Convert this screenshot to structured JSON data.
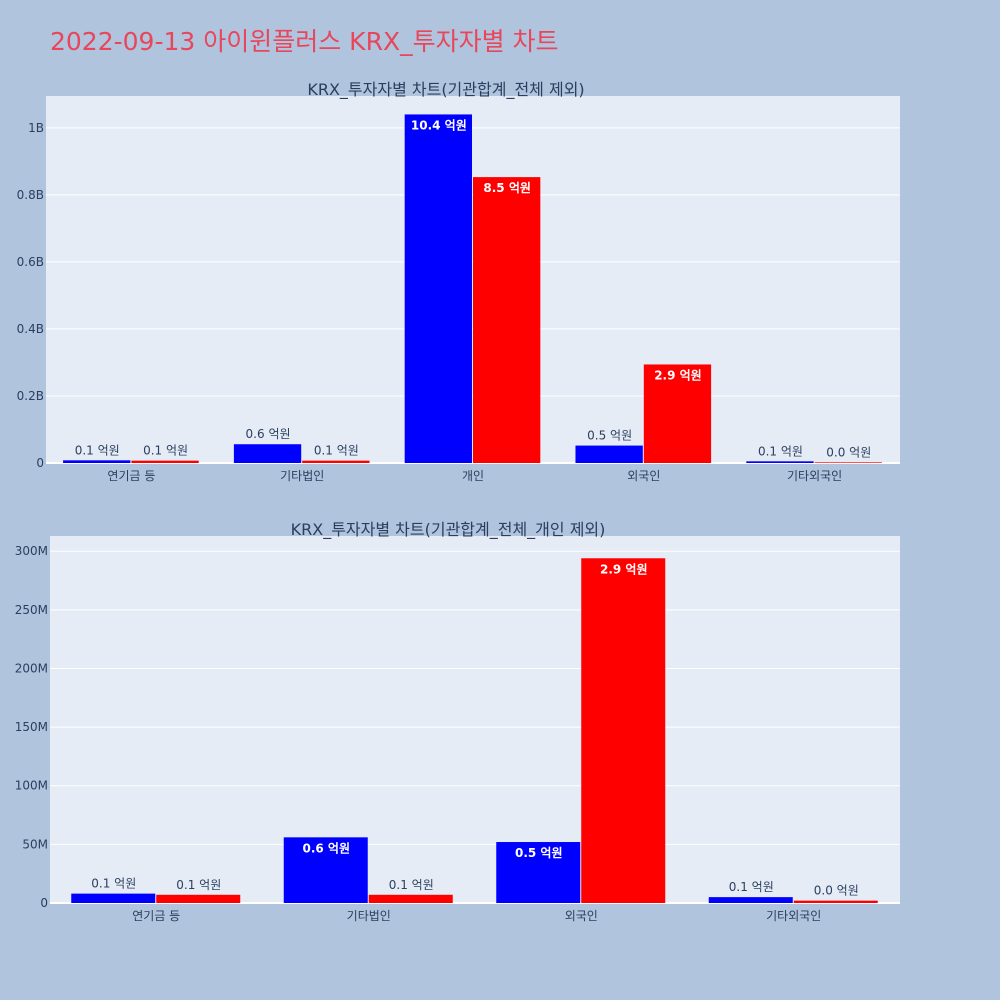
{
  "title": "2022-09-13 아이윈플러스 KRX_투자자별 차트",
  "colors": {
    "series1": "#0000ff",
    "series2": "#ff0000",
    "plot_bg": "#e5ecf6",
    "page_bg": "#b0c4de",
    "title": "#e8465a"
  },
  "chart_data": [
    {
      "type": "bar",
      "title": "KRX_투자자별 차트(기관합계_전체 제외)",
      "categories": [
        "연기금 등",
        "기타법인",
        "개인",
        "외국인",
        "기타외국인"
      ],
      "series": [
        {
          "color": "#0000ff",
          "values": [
            8000000,
            56000000,
            1040000000,
            52000000,
            5000000
          ],
          "labels": [
            "0.1 억원",
            "0.6 억원",
            "10.4 억원",
            "0.5 억원",
            "0.1 억원"
          ]
        },
        {
          "color": "#ff0000",
          "values": [
            7000000,
            7000000,
            853000000,
            294000000,
            2000000
          ],
          "labels": [
            "0.1 억원",
            "0.1 억원",
            "8.5 억원",
            "2.9 억원",
            "0.0 억원"
          ]
        }
      ],
      "yticks": [
        0,
        200000000,
        400000000,
        600000000,
        800000000,
        1000000000
      ],
      "ytick_labels": [
        "0",
        "0.2B",
        "0.4B",
        "0.6B",
        "0.8B",
        "1B"
      ],
      "ylim": [
        0,
        1095000000
      ],
      "grid": true
    },
    {
      "type": "bar",
      "title": "KRX_투자자별 차트(기관합계_전체_개인 제외)",
      "categories": [
        "연기금 등",
        "기타법인",
        "외국인",
        "기타외국인"
      ],
      "series": [
        {
          "color": "#0000ff",
          "values": [
            8000000,
            56000000,
            52000000,
            5000000
          ],
          "labels": [
            "0.1 억원",
            "0.6 억원",
            "0.5 억원",
            "0.1 억원"
          ]
        },
        {
          "color": "#ff0000",
          "values": [
            7000000,
            7000000,
            294000000,
            2000000
          ],
          "labels": [
            "0.1 억원",
            "0.1 억원",
            "2.9 억원",
            "0.0 억원"
          ]
        }
      ],
      "yticks": [
        0,
        50000000,
        100000000,
        150000000,
        200000000,
        250000000,
        300000000
      ],
      "ytick_labels": [
        "0",
        "50M",
        "100M",
        "150M",
        "200M",
        "250M",
        "300M"
      ],
      "ylim": [
        0,
        313000000
      ],
      "grid": true
    }
  ]
}
